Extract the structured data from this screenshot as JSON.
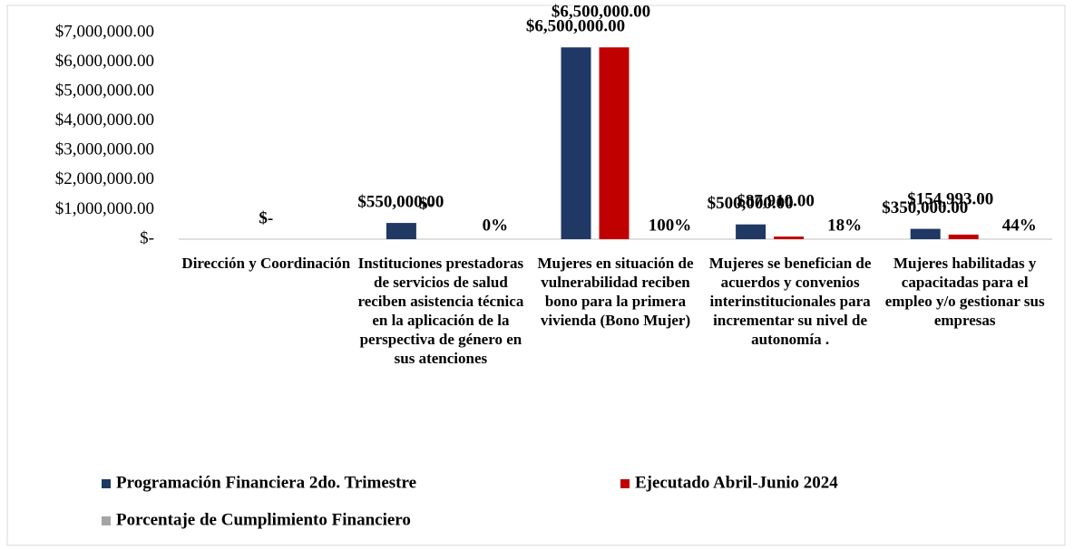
{
  "chart_data": {
    "type": "bar",
    "categories": [
      "Dirección y Coordinación",
      "Instituciones prestadoras de servicios de salud reciben asistencia técnica en la aplicación de la perspectiva de género en sus atenciones",
      "Mujeres en situación de vulnerabilidad reciben bono para la primera vivienda (Bono Mujer)",
      "Mujeres se benefician de acuerdos y convenios interinstitucionales para incrementar su nivel de autonomía .",
      "Mujeres habilitadas y capacitadas  para el empleo y/o gestionar sus empresas"
    ],
    "series": [
      {
        "name": "Programación Financiera 2do. Trimestre",
        "color": "#1f3864",
        "values": [
          0,
          550000,
          6500000,
          500000,
          350000
        ],
        "value_labels": [
          "$-",
          "$550,000.00",
          "$6,500,000.00",
          "$500,000.00",
          "$350,000.00"
        ]
      },
      {
        "name": "Ejecutado Abril-Junio 2024",
        "color": "#c00000",
        "values": [
          null,
          0,
          6500000,
          87910,
          154993
        ],
        "value_labels": [
          null,
          "$-",
          "$6,500,000.00",
          "$87,910.00",
          "$154,993.00"
        ]
      },
      {
        "name": "Porcentaje de Cumplimiento Financiero",
        "color": "#a5a5a5",
        "values": [
          null,
          0,
          100,
          18,
          44
        ],
        "value_labels": [
          null,
          "0%",
          "100%",
          "18%",
          "44%"
        ]
      }
    ],
    "ylim": [
      0,
      7000000
    ],
    "yticks": [
      {
        "value": 0,
        "label": "$-"
      },
      {
        "value": 1000000,
        "label": "$1,000,000.00"
      },
      {
        "value": 2000000,
        "label": "$2,000,000.00"
      },
      {
        "value": 3000000,
        "label": "$3,000,000.00"
      },
      {
        "value": 4000000,
        "label": "$4,000,000.00"
      },
      {
        "value": 5000000,
        "label": "$5,000,000.00"
      },
      {
        "value": 6000000,
        "label": "$6,000,000.00"
      },
      {
        "value": 7000000,
        "label": "$7,000,000.00"
      }
    ]
  }
}
